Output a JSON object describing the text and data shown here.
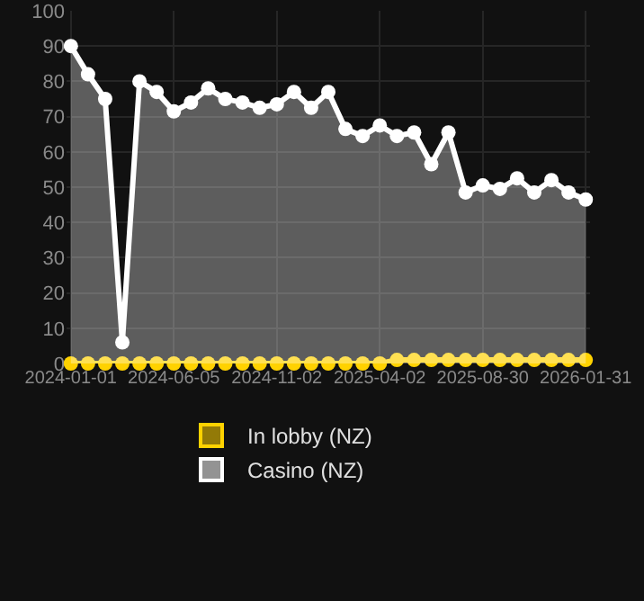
{
  "chart_data": {
    "type": "line",
    "categories": [
      "2024-01-01",
      null,
      null,
      null,
      null,
      null,
      "2024-06-05",
      null,
      null,
      null,
      null,
      null,
      "2024-11-02",
      null,
      null,
      null,
      null,
      null,
      "2025-04-02",
      null,
      null,
      null,
      null,
      null,
      "2025-08-30",
      null,
      null,
      null,
      null,
      null,
      "2026-01-31"
    ],
    "series": [
      {
        "name": "In lobby (NZ)",
        "color": "#ffd200",
        "values": [
          0,
          0,
          0,
          0,
          0,
          0,
          0,
          0,
          0,
          0,
          0,
          0,
          0,
          0,
          0,
          0,
          0,
          0,
          0,
          1,
          1,
          1,
          1,
          1,
          1,
          1,
          1,
          1,
          1,
          1,
          1
        ]
      },
      {
        "name": "Casino (NZ)",
        "color": "#ffffff",
        "type": "area",
        "values": [
          90,
          82,
          75,
          6,
          80,
          77,
          71.5,
          74,
          78,
          75,
          74,
          72.5,
          73.5,
          77,
          72.5,
          77,
          66.5,
          64.5,
          67.5,
          64.5,
          65.5,
          56.5,
          65.5,
          48.5,
          50.5,
          49.5,
          52.5,
          48.5,
          52,
          48.5,
          46.5
        ]
      }
    ],
    "ylim": [
      0,
      100
    ],
    "yticks": [
      0,
      10,
      20,
      30,
      40,
      50,
      60,
      70,
      80,
      90,
      100
    ],
    "grid": true,
    "legend": "bottom",
    "marker": "circle",
    "line_style": "solid"
  }
}
